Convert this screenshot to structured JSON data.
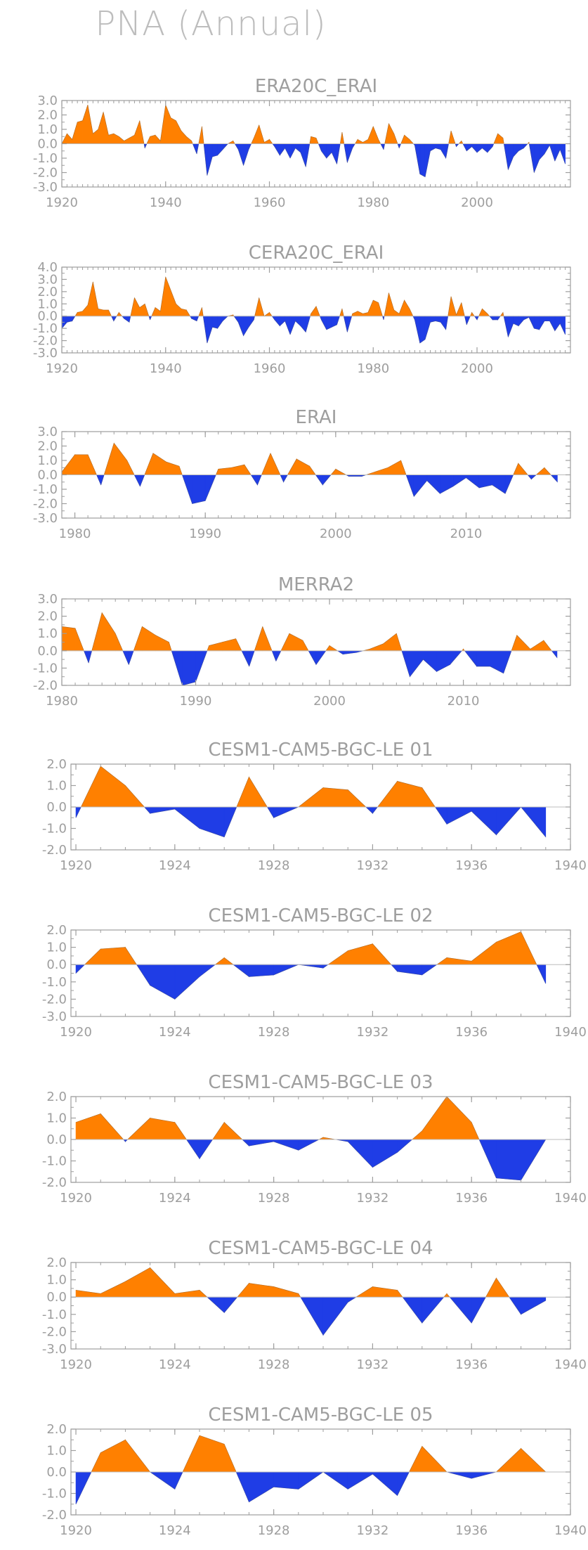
{
  "page": {
    "title": "PNA (Annual)"
  },
  "colors": {
    "positive": "#ff8000",
    "negative": "#1f3de6",
    "axis": "#9e9e9e",
    "zero": "#bdbdbd"
  },
  "chart_data": [
    {
      "type": "area",
      "title": "ERA20C_ERAI",
      "xlim": [
        1920,
        2018
      ],
      "xticks": [
        1920,
        1940,
        1960,
        1980,
        2000
      ],
      "ylim": [
        -3.0,
        3.0
      ],
      "yticks": [
        -3.0,
        -2.0,
        -1.0,
        0.0,
        1.0,
        2.0,
        3.0
      ],
      "x": [
        1920,
        1921,
        1922,
        1923,
        1924,
        1925,
        1926,
        1927,
        1928,
        1929,
        1930,
        1931,
        1932,
        1933,
        1934,
        1935,
        1936,
        1937,
        1938,
        1939,
        1940,
        1941,
        1942,
        1943,
        1944,
        1945,
        1946,
        1947,
        1948,
        1949,
        1950,
        1951,
        1952,
        1953,
        1954,
        1955,
        1956,
        1957,
        1958,
        1959,
        1960,
        1961,
        1962,
        1963,
        1964,
        1965,
        1966,
        1967,
        1968,
        1969,
        1970,
        1971,
        1972,
        1973,
        1974,
        1975,
        1976,
        1977,
        1978,
        1979,
        1980,
        1981,
        1982,
        1983,
        1984,
        1985,
        1986,
        1987,
        1988,
        1989,
        1990,
        1991,
        1992,
        1993,
        1994,
        1995,
        1996,
        1997,
        1998,
        1999,
        2000,
        2001,
        2002,
        2003,
        2004,
        2005,
        2006,
        2007,
        2008,
        2009,
        2010,
        2011,
        2012,
        2013,
        2014,
        2015,
        2016,
        2017
      ],
      "values": [
        0.0,
        0.7,
        0.3,
        1.5,
        1.6,
        2.7,
        0.7,
        1.0,
        2.2,
        0.6,
        0.7,
        0.5,
        0.2,
        0.4,
        0.6,
        1.6,
        -0.3,
        0.5,
        0.6,
        0.2,
        2.7,
        1.8,
        1.6,
        0.9,
        0.5,
        0.2,
        -0.7,
        1.2,
        -2.2,
        -0.9,
        -0.8,
        -0.4,
        0.0,
        0.2,
        -0.4,
        -1.5,
        -0.4,
        0.4,
        1.3,
        0.1,
        0.3,
        -0.2,
        -0.8,
        -0.3,
        -1.0,
        -0.3,
        -0.6,
        -1.6,
        0.5,
        0.4,
        -0.5,
        -1.0,
        -0.6,
        -1.4,
        0.8,
        -1.3,
        -0.3,
        0.3,
        0.1,
        0.3,
        1.2,
        0.3,
        -0.4,
        1.4,
        0.7,
        -0.3,
        0.6,
        0.3,
        -0.1,
        -2.1,
        -2.3,
        -0.5,
        -0.3,
        -0.4,
        -1.0,
        0.9,
        -0.2,
        0.2,
        -0.5,
        -0.2,
        -0.6,
        -0.3,
        -0.6,
        -0.2,
        0.7,
        0.4,
        -1.8,
        -0.9,
        -0.5,
        -0.3,
        0.1,
        -2.0,
        -1.1,
        -0.7,
        -0.1,
        -1.2,
        -0.4,
        -1.4
      ]
    },
    {
      "type": "area",
      "title": "CERA20C_ERAI",
      "xlim": [
        1920,
        2018
      ],
      "xticks": [
        1920,
        1940,
        1960,
        1980,
        2000
      ],
      "ylim": [
        -3.0,
        4.0
      ],
      "yticks": [
        -3.0,
        -2.0,
        -1.0,
        0.0,
        1.0,
        2.0,
        3.0,
        4.0
      ],
      "x": [
        1920,
        1921,
        1922,
        1923,
        1924,
        1925,
        1926,
        1927,
        1928,
        1929,
        1930,
        1931,
        1932,
        1933,
        1934,
        1935,
        1936,
        1937,
        1938,
        1939,
        1940,
        1941,
        1942,
        1943,
        1944,
        1945,
        1946,
        1947,
        1948,
        1949,
        1950,
        1951,
        1952,
        1953,
        1954,
        1955,
        1956,
        1957,
        1958,
        1959,
        1960,
        1961,
        1962,
        1963,
        1964,
        1965,
        1966,
        1967,
        1968,
        1969,
        1970,
        1971,
        1972,
        1973,
        1974,
        1975,
        1976,
        1977,
        1978,
        1979,
        1980,
        1981,
        1982,
        1983,
        1984,
        1985,
        1986,
        1987,
        1988,
        1989,
        1990,
        1991,
        1992,
        1993,
        1994,
        1995,
        1996,
        1997,
        1998,
        1999,
        2000,
        2001,
        2002,
        2003,
        2004,
        2005,
        2006,
        2007,
        2008,
        2009,
        2010,
        2011,
        2012,
        2013,
        2014,
        2015,
        2016,
        2017
      ],
      "values": [
        -1.0,
        -0.5,
        -0.4,
        0.3,
        0.4,
        0.9,
        2.8,
        0.6,
        0.5,
        0.5,
        -0.4,
        0.3,
        -0.2,
        -0.5,
        1.5,
        0.7,
        1.0,
        -0.3,
        0.7,
        0.4,
        3.2,
        2.1,
        1.0,
        0.6,
        0.5,
        -0.2,
        -0.4,
        0.7,
        -2.2,
        -0.9,
        -1.0,
        -0.4,
        0.0,
        0.1,
        -0.5,
        -1.6,
        -0.9,
        -0.3,
        1.5,
        0.0,
        0.3,
        -0.3,
        -0.8,
        -0.4,
        -1.5,
        -0.4,
        -0.8,
        -1.3,
        0.2,
        0.8,
        -0.3,
        -1.1,
        -0.9,
        -0.7,
        0.6,
        -1.3,
        0.2,
        0.4,
        0.2,
        0.3,
        1.3,
        1.1,
        -0.3,
        1.9,
        0.5,
        0.2,
        1.3,
        0.6,
        -0.3,
        -2.2,
        -1.9,
        -0.5,
        -0.4,
        -0.5,
        -1.1,
        1.6,
        0.1,
        1.1,
        -0.7,
        0.3,
        -0.3,
        0.6,
        0.2,
        -0.3,
        -0.3,
        0.3,
        -1.7,
        -0.6,
        -0.8,
        -0.3,
        -0.1,
        -1.0,
        -1.1,
        -0.4,
        -0.4,
        -1.2,
        -0.6,
        -1.5
      ]
    },
    {
      "type": "area",
      "title": "ERAI",
      "xlim": [
        1979,
        2018
      ],
      "xticks": [
        1980,
        1990,
        2000,
        2010
      ],
      "ylim": [
        -3.0,
        3.0
      ],
      "yticks": [
        -3.0,
        -2.0,
        -1.0,
        0.0,
        1.0,
        2.0,
        3.0
      ],
      "x": [
        1979,
        1980,
        1981,
        1982,
        1983,
        1984,
        1985,
        1986,
        1987,
        1988,
        1989,
        1990,
        1991,
        1992,
        1993,
        1994,
        1995,
        1996,
        1997,
        1998,
        1999,
        2000,
        2001,
        2002,
        2003,
        2004,
        2005,
        2006,
        2007,
        2008,
        2009,
        2010,
        2011,
        2012,
        2013,
        2014,
        2015,
        2016,
        2017
      ],
      "values": [
        0.2,
        1.4,
        1.4,
        -0.7,
        2.2,
        1.0,
        -0.8,
        1.5,
        0.9,
        0.6,
        -2.0,
        -1.8,
        0.4,
        0.5,
        0.7,
        -0.7,
        1.5,
        -0.5,
        1.1,
        0.6,
        -0.7,
        0.4,
        -0.1,
        -0.1,
        0.2,
        0.5,
        1.0,
        -1.5,
        -0.4,
        -1.3,
        -0.8,
        -0.2,
        -0.9,
        -0.7,
        -1.3,
        0.8,
        -0.3,
        0.5,
        -0.5
      ]
    },
    {
      "type": "area",
      "title": "MERRA2",
      "xlim": [
        1980,
        2018
      ],
      "xticks": [
        1980,
        1990,
        2000,
        2010
      ],
      "ylim": [
        -2.0,
        3.0
      ],
      "yticks": [
        -2.0,
        -1.0,
        0.0,
        1.0,
        2.0,
        3.0
      ],
      "x": [
        1980,
        1981,
        1982,
        1983,
        1984,
        1985,
        1986,
        1987,
        1988,
        1989,
        1990,
        1991,
        1992,
        1993,
        1994,
        1995,
        1996,
        1997,
        1998,
        1999,
        2000,
        2001,
        2002,
        2003,
        2004,
        2005,
        2006,
        2007,
        2008,
        2009,
        2010,
        2011,
        2012,
        2013,
        2014,
        2015,
        2016,
        2017
      ],
      "values": [
        1.4,
        1.3,
        -0.7,
        2.2,
        1.0,
        -0.8,
        1.4,
        0.9,
        0.5,
        -2.0,
        -1.8,
        0.3,
        0.5,
        0.7,
        -0.9,
        1.4,
        -0.6,
        1.0,
        0.6,
        -0.8,
        0.3,
        -0.2,
        -0.1,
        0.1,
        0.4,
        1.0,
        -1.5,
        -0.5,
        -1.2,
        -0.8,
        0.1,
        -0.9,
        -0.9,
        -1.3,
        0.9,
        0.1,
        0.6,
        -0.4
      ]
    },
    {
      "type": "area",
      "title": "CESM1-CAM5-BGC-LE 01",
      "xlim": [
        1919.8,
        1940
      ],
      "xticks": [
        1920,
        1924,
        1928,
        1932,
        1936,
        1940
      ],
      "ylim": [
        -2.0,
        2.0
      ],
      "yticks": [
        -2.0,
        -1.0,
        0.0,
        1.0,
        2.0
      ],
      "x": [
        1920,
        1921,
        1922,
        1923,
        1924,
        1925,
        1926,
        1927,
        1928,
        1929,
        1930,
        1931,
        1932,
        1933,
        1934,
        1935,
        1936,
        1937,
        1938,
        1939
      ],
      "values": [
        -0.5,
        1.9,
        1.0,
        -0.3,
        -0.1,
        -1.0,
        -1.4,
        1.4,
        -0.5,
        0.0,
        0.9,
        0.8,
        -0.3,
        1.2,
        0.9,
        -0.8,
        -0.2,
        -1.3,
        0.0,
        -1.4
      ]
    },
    {
      "type": "area",
      "title": "CESM1-CAM5-BGC-LE 02",
      "xlim": [
        1919.8,
        1940
      ],
      "xticks": [
        1920,
        1924,
        1928,
        1932,
        1936,
        1940
      ],
      "ylim": [
        -3.0,
        2.0
      ],
      "yticks": [
        -3.0,
        -2.0,
        -1.0,
        0.0,
        1.0,
        2.0
      ],
      "x": [
        1920,
        1921,
        1922,
        1923,
        1924,
        1925,
        1926,
        1927,
        1928,
        1929,
        1930,
        1931,
        1932,
        1933,
        1934,
        1935,
        1936,
        1937,
        1938,
        1939
      ],
      "values": [
        -0.5,
        0.9,
        1.0,
        -1.2,
        -2.0,
        -0.7,
        0.4,
        -0.7,
        -0.6,
        0.0,
        -0.2,
        0.8,
        1.2,
        -0.4,
        -0.6,
        0.4,
        0.2,
        1.3,
        1.9,
        -1.1
      ]
    },
    {
      "type": "area",
      "title": "CESM1-CAM5-BGC-LE 03",
      "xlim": [
        1919.8,
        1940
      ],
      "xticks": [
        1920,
        1924,
        1928,
        1932,
        1936,
        1940
      ],
      "ylim": [
        -2.0,
        2.0
      ],
      "yticks": [
        -2.0,
        -1.0,
        0.0,
        1.0,
        2.0
      ],
      "x": [
        1920,
        1921,
        1922,
        1923,
        1924,
        1925,
        1926,
        1927,
        1928,
        1929,
        1930,
        1931,
        1932,
        1933,
        1934,
        1935,
        1936,
        1937,
        1938,
        1939
      ],
      "values": [
        0.8,
        1.2,
        -0.1,
        1.0,
        0.8,
        -0.9,
        0.8,
        -0.3,
        -0.1,
        -0.5,
        0.1,
        -0.1,
        -1.3,
        -0.6,
        0.4,
        2.0,
        0.8,
        -1.8,
        -1.9,
        0.0
      ]
    },
    {
      "type": "area",
      "title": "CESM1-CAM5-BGC-LE 04",
      "xlim": [
        1919.8,
        1940
      ],
      "xticks": [
        1920,
        1924,
        1928,
        1932,
        1936,
        1940
      ],
      "ylim": [
        -3.0,
        2.0
      ],
      "yticks": [
        -3.0,
        -2.0,
        -1.0,
        0.0,
        1.0,
        2.0
      ],
      "x": [
        1920,
        1921,
        1922,
        1923,
        1924,
        1925,
        1926,
        1927,
        1928,
        1929,
        1930,
        1931,
        1932,
        1933,
        1934,
        1935,
        1936,
        1937,
        1938,
        1939
      ],
      "values": [
        0.4,
        0.2,
        0.9,
        1.7,
        0.2,
        0.4,
        -0.9,
        0.8,
        0.6,
        0.2,
        -2.2,
        -0.3,
        0.6,
        0.4,
        -1.5,
        0.2,
        -1.5,
        1.1,
        -1.0,
        -0.2
      ]
    },
    {
      "type": "area",
      "title": "CESM1-CAM5-BGC-LE 05",
      "xlim": [
        1919.8,
        1940
      ],
      "xticks": [
        1920,
        1924,
        1928,
        1932,
        1936,
        1940
      ],
      "ylim": [
        -2.0,
        2.0
      ],
      "yticks": [
        -2.0,
        -1.0,
        0.0,
        1.0,
        2.0
      ],
      "x": [
        1920,
        1921,
        1922,
        1923,
        1924,
        1925,
        1926,
        1927,
        1928,
        1929,
        1930,
        1931,
        1932,
        1933,
        1934,
        1935,
        1936,
        1937,
        1938,
        1939
      ],
      "values": [
        -1.5,
        0.9,
        1.5,
        0.0,
        -0.8,
        1.7,
        1.3,
        -1.4,
        -0.7,
        -0.8,
        0.0,
        -0.8,
        -0.1,
        -1.1,
        1.2,
        0.0,
        -0.3,
        0.0,
        1.1,
        0.0
      ]
    }
  ]
}
